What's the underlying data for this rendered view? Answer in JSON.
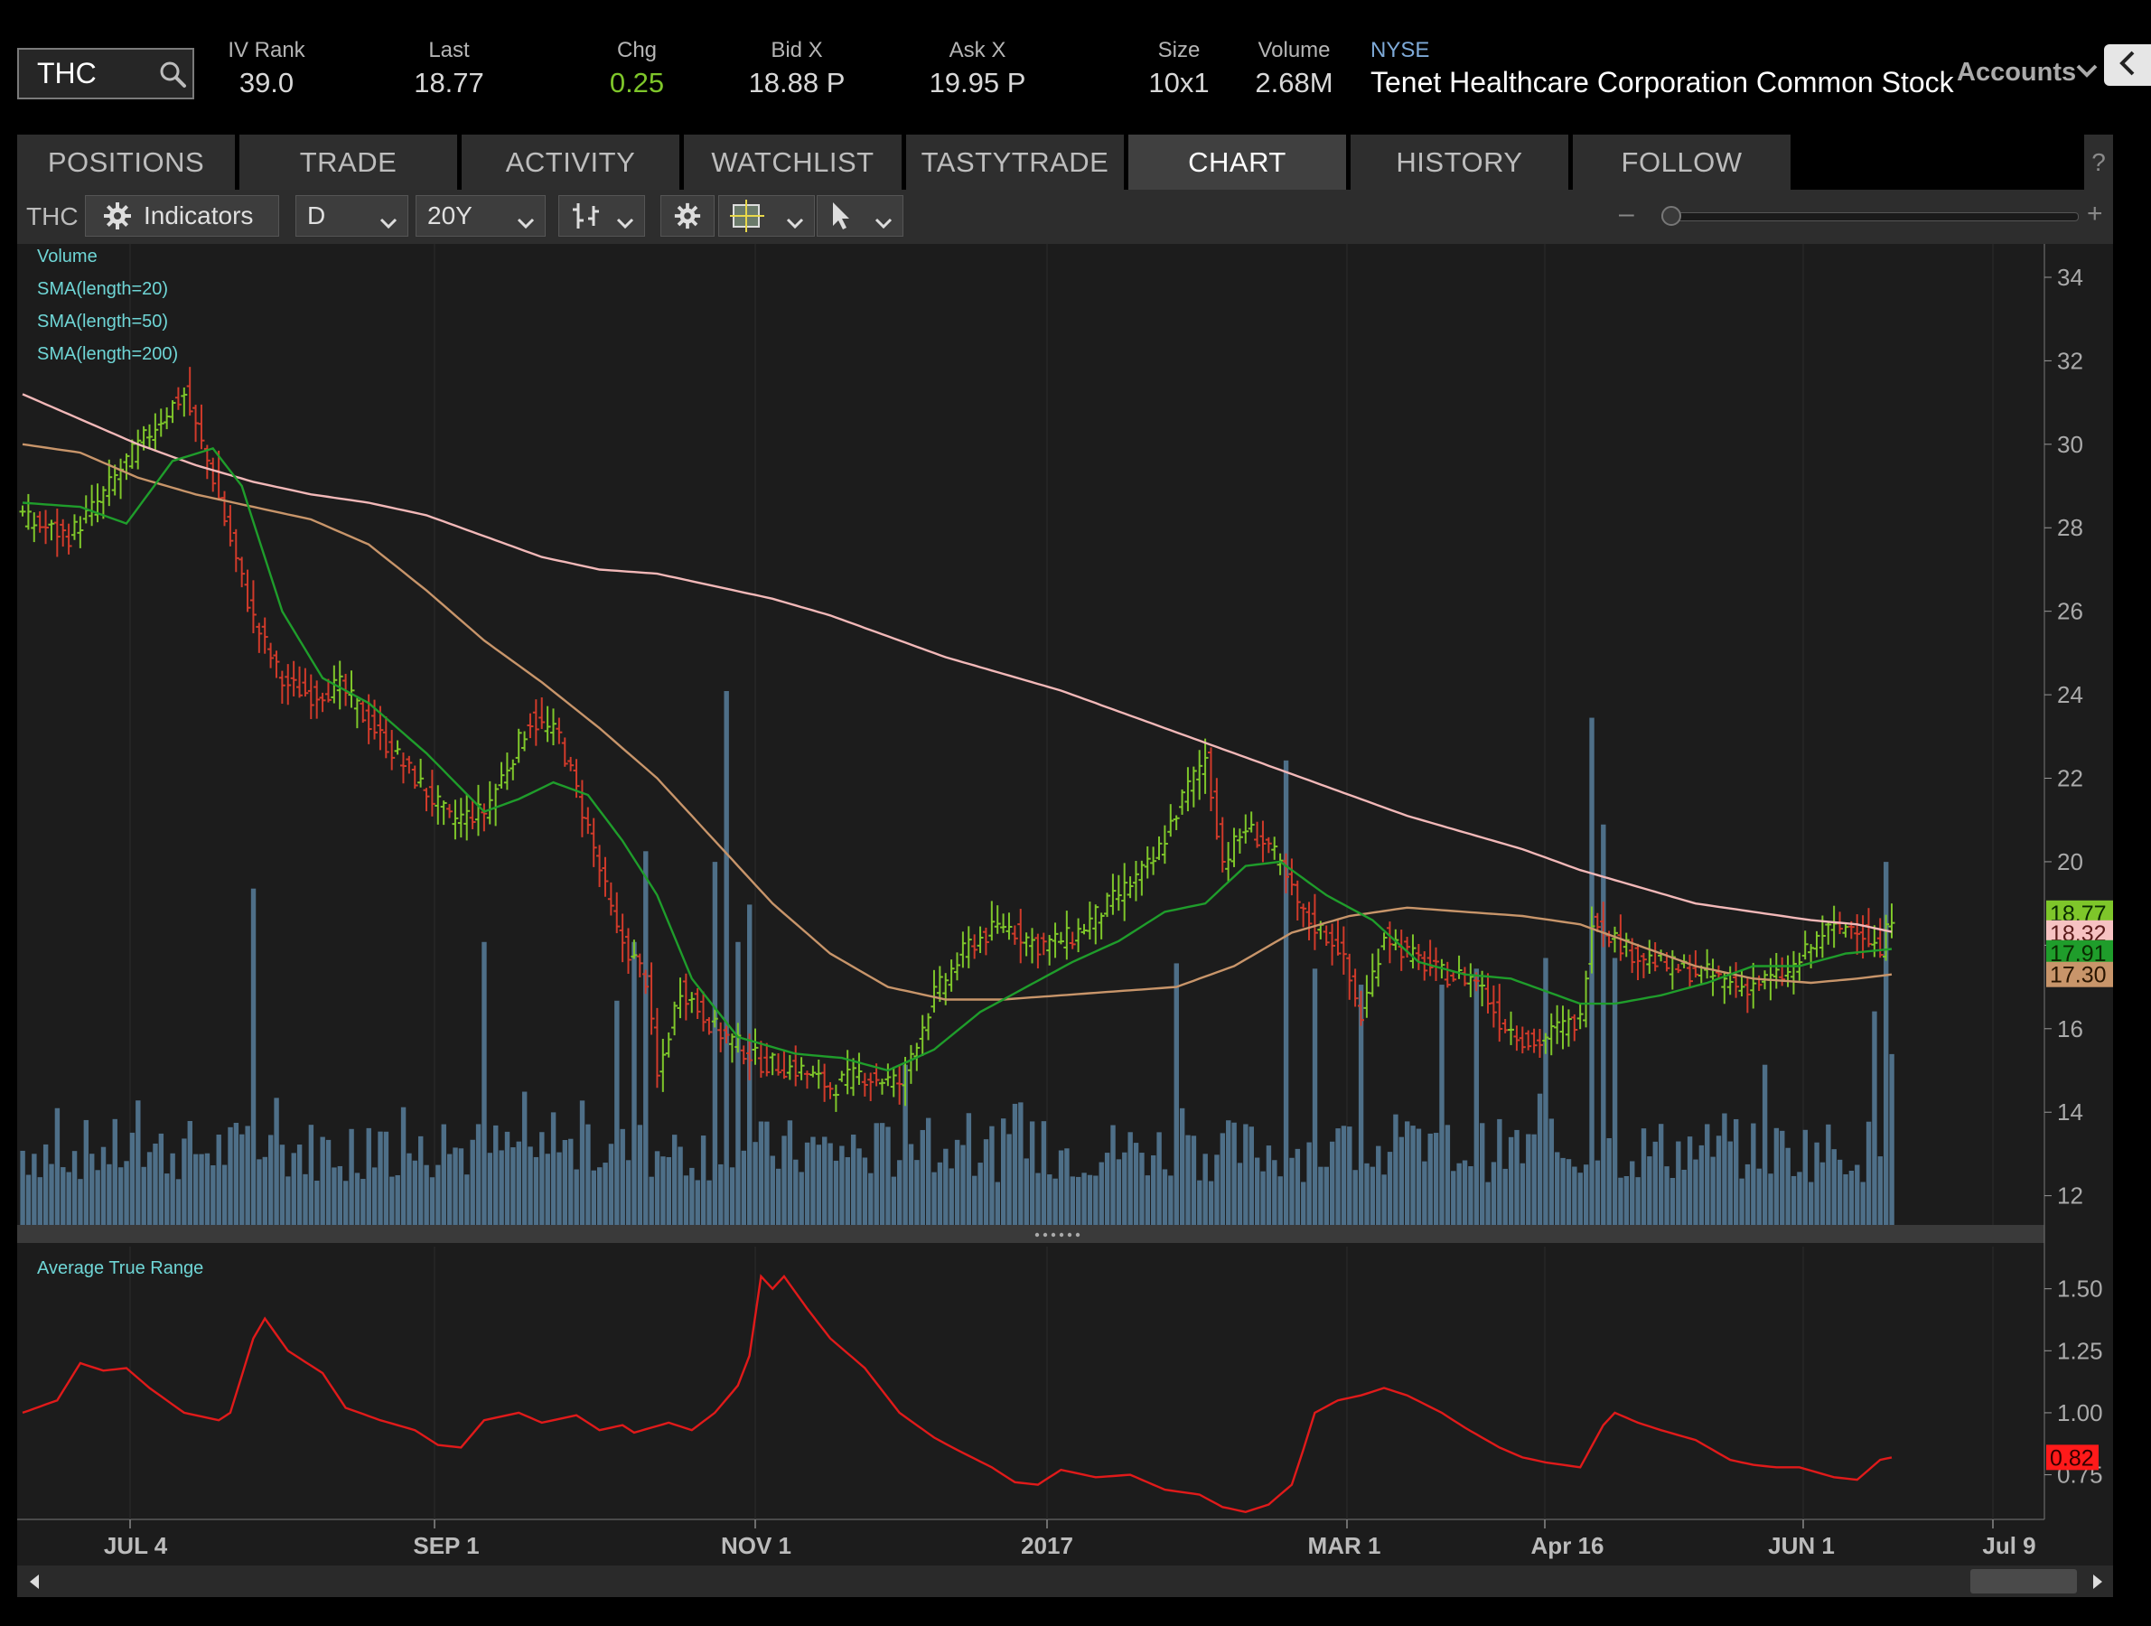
{
  "quote": {
    "symbol": "THC",
    "iv_rank_label": "IV Rank",
    "iv_rank": "39.0",
    "last_label": "Last",
    "last": "18.77",
    "chg_label": "Chg",
    "chg": "0.25",
    "bid_label": "Bid X",
    "bid": "18.88 P",
    "ask_label": "Ask X",
    "ask": "19.95 P",
    "size_label": "Size",
    "size": "10x1",
    "volume_label": "Volume",
    "volume": "2.68M",
    "exchange": "NYSE",
    "company": "Tenet Healthcare Corporation Common Stock",
    "accounts_label": "Accounts"
  },
  "tabs": [
    "POSITIONS",
    "TRADE",
    "ACTIVITY",
    "WATCHLIST",
    "TASTYTRADE",
    "CHART",
    "HISTORY",
    "FOLLOW"
  ],
  "active_tab": "CHART",
  "help_label": "?",
  "toolbar": {
    "symbol": "THC",
    "indicators_label": "Indicators",
    "aggregation": "D",
    "period": "20Y",
    "zoom_minus": "–",
    "zoom_plus": "+"
  },
  "colors": {
    "price_up": "#7ec62a",
    "price_down": "#d03a2a",
    "sma20": "#1f9d2b",
    "sma50": "#c8956a",
    "sma200": "#f2b8b8",
    "volume": "#4e6f88",
    "atr": "#e01a1a",
    "legend_text": "#6fd6d6"
  },
  "chart_data": [
    {
      "type": "candlestick",
      "legend": [
        "Volume",
        "SMA(length=20)",
        "SMA(length=50)",
        "SMA(length=200)"
      ],
      "x_labels": [
        "JUL 4",
        "SEP 1",
        "NOV 1",
        "2017",
        "MAR 1",
        "Apr 16",
        "JUN 1",
        "Jul 9"
      ],
      "y_ticks": [
        34,
        32,
        30,
        28,
        26,
        24,
        22,
        20,
        18,
        16,
        14,
        12
      ],
      "ylim": [
        11.3,
        34.8
      ],
      "price_tags": [
        {
          "text": "18.77",
          "value": 18.77,
          "bg": "#7ec62a",
          "fg": "#0a2a00"
        },
        {
          "text": "18.32",
          "value": 18.32,
          "bg": "#f6c2c2",
          "fg": "#5a1a1a"
        },
        {
          "text": "17.91",
          "value": 17.91,
          "bg": "#1f9d2b",
          "fg": "#0a2a00"
        },
        {
          "text": "17.30",
          "value": 17.3,
          "bg": "#c8956a",
          "fg": "#2a1500"
        }
      ],
      "close_anchors": [
        [
          0,
          28.2
        ],
        [
          8,
          27.8
        ],
        [
          13,
          28.6
        ],
        [
          18,
          29.6
        ],
        [
          25,
          30.8
        ],
        [
          28,
          31.2
        ],
        [
          33,
          29.2
        ],
        [
          37,
          27.2
        ],
        [
          40,
          25.8
        ],
        [
          45,
          24.3
        ],
        [
          50,
          24.0
        ],
        [
          55,
          24.2
        ],
        [
          62,
          23.0
        ],
        [
          68,
          22.0
        ],
        [
          74,
          21.0
        ],
        [
          80,
          21.2
        ],
        [
          88,
          23.4
        ],
        [
          93,
          23.0
        ],
        [
          98,
          20.8
        ],
        [
          103,
          18.3
        ],
        [
          108,
          17.2
        ],
        [
          110,
          14.8
        ],
        [
          114,
          17.0
        ],
        [
          120,
          16.0
        ],
        [
          128,
          15.2
        ],
        [
          135,
          15.0
        ],
        [
          140,
          14.6
        ],
        [
          145,
          14.9
        ],
        [
          152,
          14.7
        ],
        [
          158,
          16.8
        ],
        [
          164,
          18.0
        ],
        [
          170,
          18.5
        ],
        [
          176,
          18.0
        ],
        [
          182,
          18.2
        ],
        [
          190,
          19.2
        ],
        [
          196,
          20.0
        ],
        [
          202,
          21.8
        ],
        [
          205,
          22.5
        ],
        [
          208,
          20.0
        ],
        [
          212,
          20.8
        ],
        [
          216,
          20.4
        ],
        [
          222,
          18.7
        ],
        [
          228,
          18.0
        ],
        [
          232,
          16.3
        ],
        [
          236,
          18.3
        ],
        [
          240,
          17.8
        ],
        [
          246,
          17.3
        ],
        [
          252,
          17.2
        ],
        [
          256,
          16.2
        ],
        [
          262,
          15.6
        ],
        [
          266,
          16.0
        ],
        [
          270,
          16.2
        ],
        [
          272,
          18.7
        ],
        [
          278,
          17.9
        ],
        [
          285,
          17.5
        ],
        [
          292,
          17.3
        ],
        [
          298,
          17.0
        ],
        [
          306,
          17.3
        ],
        [
          312,
          18.3
        ],
        [
          318,
          18.5
        ],
        [
          322,
          17.8
        ],
        [
          324,
          18.77
        ]
      ],
      "sma20_anchors": [
        [
          0,
          28.6
        ],
        [
          10,
          28.5
        ],
        [
          18,
          28.1
        ],
        [
          26,
          29.6
        ],
        [
          33,
          29.9
        ],
        [
          38,
          29.0
        ],
        [
          45,
          26.0
        ],
        [
          52,
          24.4
        ],
        [
          60,
          23.8
        ],
        [
          70,
          22.6
        ],
        [
          80,
          21.2
        ],
        [
          86,
          21.5
        ],
        [
          92,
          21.9
        ],
        [
          98,
          21.6
        ],
        [
          104,
          20.5
        ],
        [
          110,
          19.2
        ],
        [
          116,
          17.2
        ],
        [
          124,
          15.8
        ],
        [
          134,
          15.4
        ],
        [
          142,
          15.3
        ],
        [
          150,
          15.0
        ],
        [
          158,
          15.5
        ],
        [
          166,
          16.4
        ],
        [
          174,
          17.0
        ],
        [
          182,
          17.6
        ],
        [
          190,
          18.1
        ],
        [
          198,
          18.8
        ],
        [
          205,
          19.0
        ],
        [
          212,
          19.9
        ],
        [
          218,
          20.0
        ],
        [
          226,
          19.2
        ],
        [
          234,
          18.6
        ],
        [
          242,
          17.6
        ],
        [
          250,
          17.3
        ],
        [
          258,
          17.2
        ],
        [
          264,
          16.9
        ],
        [
          270,
          16.6
        ],
        [
          276,
          16.6
        ],
        [
          284,
          16.8
        ],
        [
          292,
          17.1
        ],
        [
          300,
          17.5
        ],
        [
          308,
          17.5
        ],
        [
          316,
          17.8
        ],
        [
          324,
          17.91
        ]
      ],
      "sma50_anchors": [
        [
          0,
          30.0
        ],
        [
          10,
          29.8
        ],
        [
          20,
          29.2
        ],
        [
          30,
          28.8
        ],
        [
          40,
          28.5
        ],
        [
          50,
          28.2
        ],
        [
          60,
          27.6
        ],
        [
          70,
          26.5
        ],
        [
          80,
          25.3
        ],
        [
          90,
          24.3
        ],
        [
          100,
          23.2
        ],
        [
          110,
          22.0
        ],
        [
          120,
          20.5
        ],
        [
          130,
          19.0
        ],
        [
          140,
          17.8
        ],
        [
          150,
          17.0
        ],
        [
          160,
          16.7
        ],
        [
          170,
          16.7
        ],
        [
          180,
          16.8
        ],
        [
          190,
          16.9
        ],
        [
          200,
          17.0
        ],
        [
          210,
          17.5
        ],
        [
          220,
          18.3
        ],
        [
          230,
          18.7
        ],
        [
          240,
          18.9
        ],
        [
          250,
          18.8
        ],
        [
          260,
          18.7
        ],
        [
          270,
          18.5
        ],
        [
          280,
          18.0
        ],
        [
          290,
          17.5
        ],
        [
          300,
          17.2
        ],
        [
          310,
          17.1
        ],
        [
          318,
          17.2
        ],
        [
          324,
          17.3
        ]
      ],
      "sma200_anchors": [
        [
          0,
          31.2
        ],
        [
          10,
          30.6
        ],
        [
          20,
          30.0
        ],
        [
          30,
          29.5
        ],
        [
          40,
          29.1
        ],
        [
          50,
          28.8
        ],
        [
          60,
          28.6
        ],
        [
          70,
          28.3
        ],
        [
          80,
          27.8
        ],
        [
          90,
          27.3
        ],
        [
          100,
          27.0
        ],
        [
          110,
          26.9
        ],
        [
          120,
          26.6
        ],
        [
          130,
          26.3
        ],
        [
          140,
          25.9
        ],
        [
          150,
          25.4
        ],
        [
          160,
          24.9
        ],
        [
          170,
          24.5
        ],
        [
          180,
          24.1
        ],
        [
          190,
          23.6
        ],
        [
          200,
          23.1
        ],
        [
          210,
          22.6
        ],
        [
          220,
          22.1
        ],
        [
          230,
          21.6
        ],
        [
          240,
          21.1
        ],
        [
          250,
          20.7
        ],
        [
          260,
          20.3
        ],
        [
          270,
          19.8
        ],
        [
          280,
          19.4
        ],
        [
          290,
          19.0
        ],
        [
          300,
          18.8
        ],
        [
          310,
          18.6
        ],
        [
          318,
          18.5
        ],
        [
          324,
          18.32
        ]
      ],
      "volume_spikes": [
        [
          40,
          0.63
        ],
        [
          80,
          0.53
        ],
        [
          103,
          0.42
        ],
        [
          106,
          0.53
        ],
        [
          108,
          0.7
        ],
        [
          120,
          0.68
        ],
        [
          122,
          1.0
        ],
        [
          124,
          0.53
        ],
        [
          126,
          0.6
        ],
        [
          153,
          0.3
        ],
        [
          200,
          0.49
        ],
        [
          219,
          0.87
        ],
        [
          224,
          0.48
        ],
        [
          232,
          0.45
        ],
        [
          246,
          0.45
        ],
        [
          252,
          0.48
        ],
        [
          264,
          0.5
        ],
        [
          272,
          0.95
        ],
        [
          274,
          0.75
        ],
        [
          276,
          0.5
        ],
        [
          302,
          0.3
        ],
        [
          321,
          0.4
        ],
        [
          323,
          0.68
        ],
        [
          324,
          0.32
        ]
      ]
    },
    {
      "type": "line",
      "title": "Average True Range",
      "y_ticks": [
        1.5,
        1.25,
        1.0,
        0.75
      ],
      "ylim": [
        0.57,
        1.67
      ],
      "last_value_tag": "0.82",
      "atr_anchors": [
        [
          0,
          1.0
        ],
        [
          6,
          1.05
        ],
        [
          10,
          1.2
        ],
        [
          14,
          1.17
        ],
        [
          18,
          1.18
        ],
        [
          22,
          1.1
        ],
        [
          28,
          1.0
        ],
        [
          34,
          0.97
        ],
        [
          36,
          1.0
        ],
        [
          40,
          1.3
        ],
        [
          42,
          1.38
        ],
        [
          46,
          1.25
        ],
        [
          52,
          1.16
        ],
        [
          56,
          1.02
        ],
        [
          62,
          0.97
        ],
        [
          68,
          0.93
        ],
        [
          72,
          0.87
        ],
        [
          76,
          0.86
        ],
        [
          80,
          0.97
        ],
        [
          86,
          1.0
        ],
        [
          90,
          0.96
        ],
        [
          96,
          0.99
        ],
        [
          100,
          0.93
        ],
        [
          104,
          0.95
        ],
        [
          106,
          0.92
        ],
        [
          112,
          0.96
        ],
        [
          116,
          0.93
        ],
        [
          120,
          1.0
        ],
        [
          124,
          1.11
        ],
        [
          126,
          1.23
        ],
        [
          128,
          1.55
        ],
        [
          130,
          1.5
        ],
        [
          132,
          1.55
        ],
        [
          136,
          1.42
        ],
        [
          140,
          1.3
        ],
        [
          146,
          1.18
        ],
        [
          152,
          1.0
        ],
        [
          158,
          0.9
        ],
        [
          162,
          0.85
        ],
        [
          168,
          0.78
        ],
        [
          172,
          0.72
        ],
        [
          176,
          0.71
        ],
        [
          180,
          0.77
        ],
        [
          186,
          0.74
        ],
        [
          192,
          0.75
        ],
        [
          198,
          0.69
        ],
        [
          204,
          0.67
        ],
        [
          208,
          0.62
        ],
        [
          212,
          0.6
        ],
        [
          216,
          0.63
        ],
        [
          220,
          0.71
        ],
        [
          222,
          0.85
        ],
        [
          224,
          1.0
        ],
        [
          228,
          1.05
        ],
        [
          232,
          1.07
        ],
        [
          236,
          1.1
        ],
        [
          240,
          1.07
        ],
        [
          246,
          1.0
        ],
        [
          250,
          0.94
        ],
        [
          256,
          0.86
        ],
        [
          260,
          0.82
        ],
        [
          264,
          0.8
        ],
        [
          270,
          0.78
        ],
        [
          274,
          0.95
        ],
        [
          276,
          1.0
        ],
        [
          280,
          0.96
        ],
        [
          284,
          0.93
        ],
        [
          290,
          0.89
        ],
        [
          296,
          0.81
        ],
        [
          300,
          0.79
        ],
        [
          304,
          0.78
        ],
        [
          308,
          0.78
        ],
        [
          314,
          0.74
        ],
        [
          318,
          0.73
        ],
        [
          322,
          0.81
        ],
        [
          324,
          0.82
        ]
      ]
    }
  ]
}
